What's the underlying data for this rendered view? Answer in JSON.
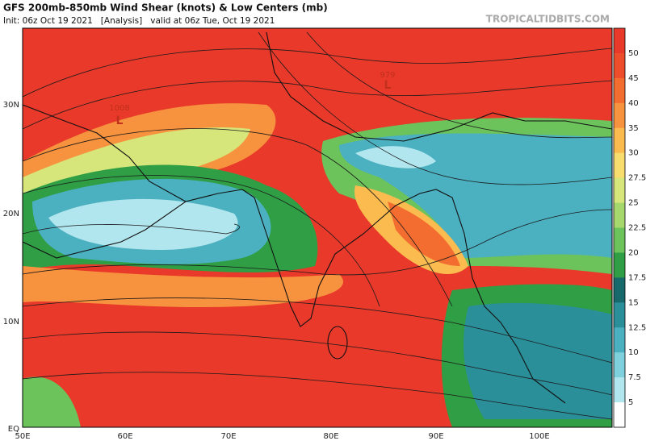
{
  "header": {
    "title": "GFS 200mb-850mb Wind Shear (knots) & Low Centers (mb)",
    "subtitle": "Init: 06z Oct 19 2021   [Analysis]   valid at 06z Tue, Oct 19 2021",
    "site": "TROPICALTIDBITS.COM"
  },
  "map": {
    "lat_labels": [
      "30N",
      "20N",
      "10N",
      "EQ"
    ],
    "lon_labels": [
      "50E",
      "60E",
      "70E",
      "80E",
      "90E",
      "100E"
    ],
    "lows": [
      {
        "symbol": "L",
        "pressure": "1008"
      },
      {
        "symbol": "L",
        "pressure": "979"
      }
    ]
  },
  "colorbar": {
    "labels": [
      50,
      45,
      40,
      35,
      30,
      27.5,
      25,
      22.5,
      20,
      17.5,
      15,
      12.5,
      10,
      7.5,
      5
    ],
    "colors": [
      "#e8392a",
      "#ee4d2c",
      "#f36c30",
      "#f7923e",
      "#fbbb4e",
      "#f6dd6e",
      "#d6e67a",
      "#a6d76d",
      "#6cc35b",
      "#2f9e44",
      "#17696c",
      "#2b8f9a",
      "#4bb0c0",
      "#7dd0dc",
      "#b2e6ee",
      "#ffffff"
    ]
  }
}
